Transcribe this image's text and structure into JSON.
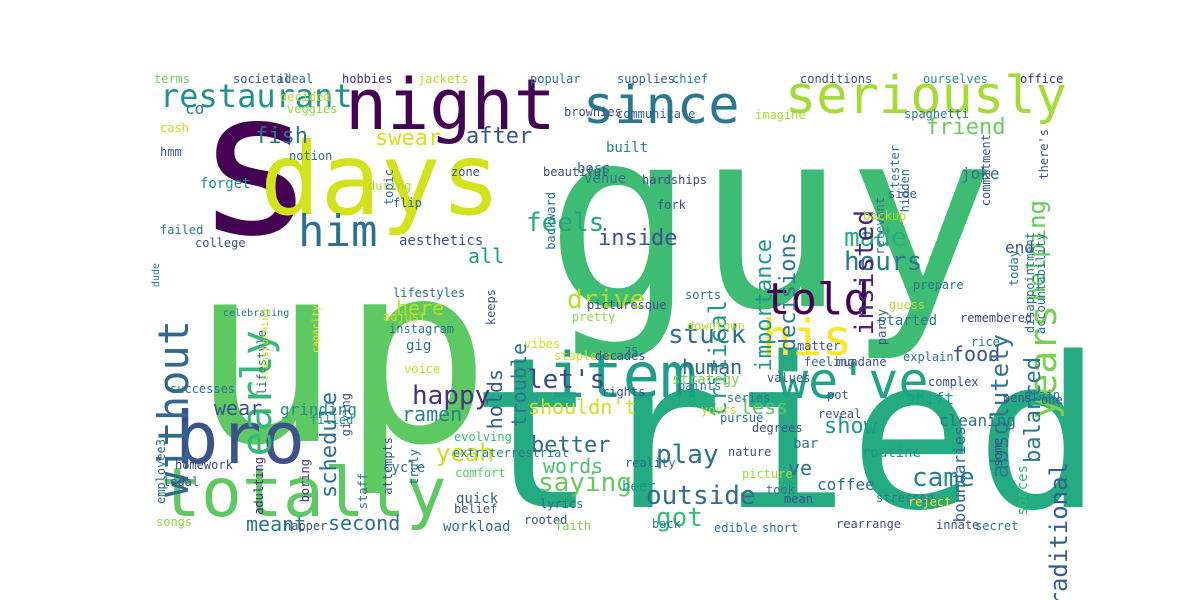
{
  "words": [
    {
      "text": "guy",
      "color": "#3fbc73"
    },
    {
      "text": "up",
      "color": "#5ec962"
    },
    {
      "text": "tried",
      "color": "#25ab82"
    },
    {
      "text": "s",
      "color": "#440154"
    },
    {
      "text": "days",
      "color": "#d2e21b"
    },
    {
      "text": "night",
      "color": "#440154"
    },
    {
      "text": "since",
      "color": "#2a788e"
    },
    {
      "text": "seriously",
      "color": "#a5db36"
    },
    {
      "text": "restaurant",
      "color": "#21918c"
    },
    {
      "text": "item",
      "color": "#1f9e89"
    },
    {
      "text": "we've",
      "color": "#20a486"
    },
    {
      "text": "his",
      "color": "#fde725"
    },
    {
      "text": "told",
      "color": "#440154"
    },
    {
      "text": "bro",
      "color": "#3b528b"
    },
    {
      "text": "totally",
      "color": "#5ec962"
    },
    {
      "text": "without",
      "color": "#31688e"
    },
    {
      "text": "early",
      "color": "#35b779"
    },
    {
      "text": "him",
      "color": "#2c728e"
    },
    {
      "text": "years",
      "color": "#7ad151"
    },
    {
      "text": "feels",
      "color": "#22a884"
    },
    {
      "text": "made",
      "color": "#27ad81"
    },
    {
      "text": "hours",
      "color": "#2a788e"
    },
    {
      "text": "drive",
      "color": "#b5de2b"
    },
    {
      "text": "stuck",
      "color": "#2c728e"
    },
    {
      "text": "let's",
      "color": "#3e4989"
    },
    {
      "text": "happy",
      "color": "#46327e"
    },
    {
      "text": "yeah",
      "color": "#c8e020"
    },
    {
      "text": "play",
      "color": "#2c728e"
    },
    {
      "text": "outside",
      "color": "#2f6c8e"
    },
    {
      "text": "got",
      "color": "#3aba76"
    },
    {
      "text": "came",
      "color": "#26828e"
    },
    {
      "text": "saying",
      "color": "#65cb5e"
    },
    {
      "text": "words",
      "color": "#4ac16d"
    },
    {
      "text": "better",
      "color": "#2e6e8e"
    },
    {
      "text": "shouldn't",
      "color": "#d0e11c"
    },
    {
      "text": "less",
      "color": "#5ec962"
    },
    {
      "text": "food",
      "color": "#3b528b"
    },
    {
      "text": "show",
      "color": "#1f9a8a"
    },
    {
      "text": "traditional",
      "color": "#365d8d"
    },
    {
      "text": "balanced",
      "color": "#2a788e"
    },
    {
      "text": "absolutely",
      "color": "#2a778e"
    },
    {
      "text": "helping",
      "color": "#65cb5e"
    },
    {
      "text": "critical",
      "color": "#1f9e89"
    },
    {
      "text": "importance",
      "color": "#1f988b"
    },
    {
      "text": "decisions",
      "color": "#2a788e"
    },
    {
      "text": "insisted",
      "color": "#482576"
    },
    {
      "text": "friend",
      "color": "#6ccd5a"
    },
    {
      "text": "schedule",
      "color": "#2d708e"
    },
    {
      "text": "human",
      "color": "#31688e"
    },
    {
      "text": "inside",
      "color": "#3b528b"
    },
    {
      "text": "swear",
      "color": "#d8e219"
    },
    {
      "text": "fish",
      "color": "#2c728e"
    },
    {
      "text": "after",
      "color": "#38588c"
    },
    {
      "text": "second",
      "color": "#2c728e"
    },
    {
      "text": "meant",
      "color": "#2a788e"
    },
    {
      "text": "ramen",
      "color": "#26828e"
    },
    {
      "text": "wear",
      "color": "#3b528b"
    },
    {
      "text": "grinding",
      "color": "#21918c"
    },
    {
      "text": "here",
      "color": "#b5de2b"
    },
    {
      "text": "holds",
      "color": "#38588c"
    },
    {
      "text": "trouble",
      "color": "#2a788e"
    },
    {
      "text": "all",
      "color": "#1f988b"
    },
    {
      "text": "co",
      "color": "#2a788e"
    },
    {
      "text": "ve",
      "color": "#2c728e"
    },
    {
      "text": "beer",
      "color": "#1f9a8a"
    },
    {
      "text": "coffee",
      "color": "#2e6e8e"
    },
    {
      "text": "shift",
      "color": "#1f9e89"
    },
    {
      "text": "cleaning",
      "color": "#2d708e"
    },
    {
      "text": "joke",
      "color": "#2d708e"
    },
    {
      "text": "end",
      "color": "#39568c"
    },
    {
      "text": "started",
      "color": "#287c8e"
    },
    {
      "text": "bar",
      "color": "#2a788e"
    },
    {
      "text": "strategy",
      "color": "#7ad151"
    },
    {
      "text": "cycle",
      "color": "#2a788e"
    },
    {
      "text": "quick",
      "color": "#33638d"
    },
    {
      "text": "workload",
      "color": "#2e6e8e"
    },
    {
      "text": "boundaries",
      "color": "#33638d"
    },
    {
      "text": "spaces",
      "color": "#35b779"
    },
    {
      "text": "routine",
      "color": "#1f9a8a"
    },
    {
      "text": "reveal",
      "color": "#3b528b"
    },
    {
      "text": "staff",
      "color": "#2c728e"
    },
    {
      "text": "homework",
      "color": "#3e4989"
    },
    {
      "text": "adulting",
      "color": "#482878"
    },
    {
      "text": "boring",
      "color": "#46327e"
    },
    {
      "text": "employee3",
      "color": "#31688e"
    },
    {
      "text": "forget",
      "color": "#21918c"
    },
    {
      "text": "aesthetics",
      "color": "#3b528b"
    },
    {
      "text": "college",
      "color": "#3b528b"
    },
    {
      "text": "failed",
      "color": "#2a788e"
    },
    {
      "text": "gig",
      "color": "#2a788e"
    },
    {
      "text": "instagram",
      "color": "#2a788e"
    },
    {
      "text": "adjust",
      "color": "#d0e11c"
    },
    {
      "text": "built",
      "color": "#26828e"
    },
    {
      "text": "boss",
      "color": "#2a788e"
    },
    {
      "text": "venue",
      "color": "#2a788e"
    },
    {
      "text": "flip",
      "color": "#33638d"
    },
    {
      "text": "fork",
      "color": "#3b528b"
    },
    {
      "text": "communicate",
      "color": "#33638d"
    },
    {
      "text": "brownies",
      "color": "#3b528b"
    },
    {
      "text": "terms",
      "color": "#6ccd5a"
    },
    {
      "text": "societal",
      "color": "#3b528b"
    },
    {
      "text": "ideal",
      "color": "#31688e"
    },
    {
      "text": "hobbies",
      "color": "#46327e"
    },
    {
      "text": "jackets",
      "color": "#b5de2b"
    },
    {
      "text": "popular",
      "color": "#2e6e8e"
    },
    {
      "text": "supplies",
      "color": "#33638d"
    },
    {
      "text": "chief",
      "color": "#287c8e"
    },
    {
      "text": "conditions",
      "color": "#3b528b"
    },
    {
      "text": "ourselves",
      "color": "#21918c"
    },
    {
      "text": "office",
      "color": "#46327e"
    },
    {
      "text": "decided",
      "color": "#b5de2b"
    },
    {
      "text": "veggies",
      "color": "#90d743"
    },
    {
      "text": "cash",
      "color": "#c8e020"
    },
    {
      "text": "notion",
      "color": "#2c728e"
    },
    {
      "text": "hmm",
      "color": "#39568c"
    },
    {
      "text": "imagine",
      "color": "#a5db36"
    },
    {
      "text": "spaghetti",
      "color": "#2a788e"
    },
    {
      "text": "side",
      "color": "#38588c"
    },
    {
      "text": "tester",
      "color": "#2a788e"
    },
    {
      "text": "commitment",
      "color": "#3b528b"
    },
    {
      "text": "there's",
      "color": "#3b528b"
    },
    {
      "text": "relevant",
      "color": "#2a788e"
    },
    {
      "text": "backup",
      "color": "#b5de2b"
    },
    {
      "text": "hidden",
      "color": "#2c728e"
    },
    {
      "text": "hardships",
      "color": "#3e4989"
    },
    {
      "text": "zone",
      "color": "#3b528b"
    },
    {
      "text": "topic",
      "color": "#2e6e8e"
    },
    {
      "text": "during",
      "color": "#a5db36"
    },
    {
      "text": "backward",
      "color": "#2c728e"
    },
    {
      "text": "beautiful",
      "color": "#3e4989"
    },
    {
      "text": "dude",
      "color": "#26828e"
    },
    {
      "text": "celebrating",
      "color": "#2c728e"
    },
    {
      "text": "lifestyle",
      "color": "#2c728e"
    },
    {
      "text": "transforming",
      "color": "#c8e020"
    },
    {
      "text": "capacity",
      "color": "#fde725"
    },
    {
      "text": "lifestyles",
      "color": "#2e6e8e"
    },
    {
      "text": "giving",
      "color": "#3b528b"
    },
    {
      "text": "filled",
      "color": "#21918c"
    },
    {
      "text": "attempts",
      "color": "#3b528b"
    },
    {
      "text": "truly",
      "color": "#2e6e8e"
    },
    {
      "text": "evolving",
      "color": "#35b779"
    },
    {
      "text": "reality",
      "color": "#2e6e8e"
    },
    {
      "text": "extraterrestrial",
      "color": "#2a788e"
    },
    {
      "text": "comfort",
      "color": "#5ec962"
    },
    {
      "text": "legal",
      "color": "#3b528b"
    },
    {
      "text": "songs",
      "color": "#90d743"
    },
    {
      "text": "napper",
      "color": "#3b528b"
    },
    {
      "text": "belief",
      "color": "#3b528b"
    },
    {
      "text": "lyrics",
      "color": "#2e6e8e"
    },
    {
      "text": "rooted",
      "color": "#3b528b"
    },
    {
      "text": "faith",
      "color": "#7ad151"
    },
    {
      "text": "back",
      "color": "#2a788e"
    },
    {
      "text": "edible",
      "color": "#2a788e"
    },
    {
      "text": "short",
      "color": "#2e6e8e"
    },
    {
      "text": "rearrange",
      "color": "#3b528b"
    },
    {
      "text": "innate",
      "color": "#3b528b"
    },
    {
      "text": "secret",
      "color": "#2a788e"
    },
    {
      "text": "successes",
      "color": "#2c728e"
    },
    {
      "text": "voice",
      "color": "#c8e020"
    },
    {
      "text": "vibes",
      "color": "#c8e020"
    },
    {
      "text": "keeps",
      "color": "#3b528b"
    },
    {
      "text": "picturesque",
      "color": "#3b528b"
    },
    {
      "text": "pretty",
      "color": "#90d743"
    },
    {
      "text": "staplers",
      "color": "#c8e020"
    },
    {
      "text": "decades",
      "color": "#3b528b"
    },
    {
      "text": "75",
      "color": "#2a788e"
    },
    {
      "text": "rights",
      "color": "#3b528b"
    },
    {
      "text": "paints",
      "color": "#2a788e"
    },
    {
      "text": "sorts",
      "color": "#2c728e"
    },
    {
      "text": "downtown",
      "color": "#b5de2b"
    },
    {
      "text": "values",
      "color": "#3b528b"
    },
    {
      "text": "matter",
      "color": "#3b528b"
    },
    {
      "text": "feeling",
      "color": "#2e6e8e"
    },
    {
      "text": "series",
      "color": "#2a788e"
    },
    {
      "text": "yours",
      "color": "#b5de2b"
    },
    {
      "text": "pursue",
      "color": "#2e6e8e"
    },
    {
      "text": "degrees",
      "color": "#3b528b"
    },
    {
      "text": "nature",
      "color": "#3b528b"
    },
    {
      "text": "picture",
      "color": "#a5db36"
    },
    {
      "text": "took",
      "color": "#2a788e"
    },
    {
      "text": "mean",
      "color": "#3b528b"
    },
    {
      "text": "stressed",
      "color": "#2a788e"
    },
    {
      "text": "reject",
      "color": "#fde725"
    },
    {
      "text": "pot",
      "color": "#3b528b"
    },
    {
      "text": "mundane",
      "color": "#3b528b"
    },
    {
      "text": "explain",
      "color": "#2c728e"
    },
    {
      "text": "complex",
      "color": "#3b528b"
    },
    {
      "text": "remembered",
      "color": "#3e4989"
    },
    {
      "text": "rice",
      "color": "#2c728e"
    },
    {
      "text": "one",
      "color": "#3b528b"
    },
    {
      "text": "plain",
      "color": "#2c728e"
    },
    {
      "text": "pens",
      "color": "#3b528b"
    },
    {
      "text": "some",
      "color": "#3b528b"
    },
    {
      "text": "prepare",
      "color": "#2c728e"
    },
    {
      "text": "guess",
      "color": "#b5de2b"
    },
    {
      "text": "party",
      "color": "#3b528b"
    },
    {
      "text": "today",
      "color": "#2a788e"
    },
    {
      "text": "disappointment",
      "color": "#2a788e"
    },
    {
      "text": "accountability",
      "color": "#2c728e"
    },
    {
      "text": "seamlessly",
      "color": "#2c728e"
    }
  ]
}
